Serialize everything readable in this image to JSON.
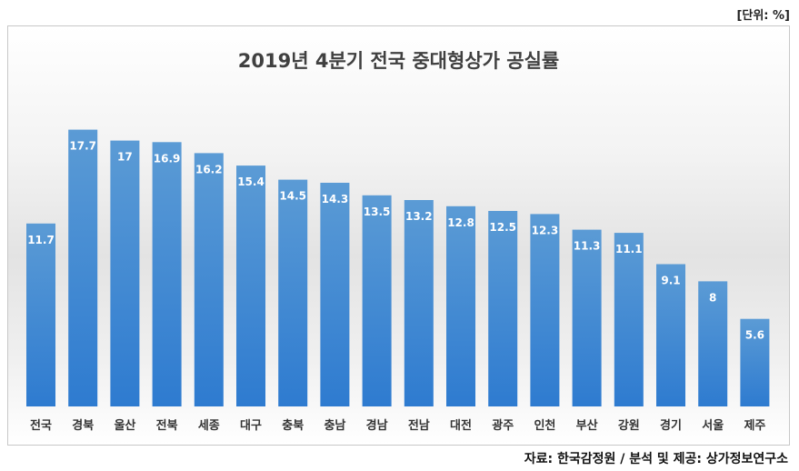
{
  "unit_label": "[단위: %]",
  "source": "자료: 한국감정원 / 분석 및 제공: 상가정보연구소",
  "colors": {
    "bar_top": "#5b9bd5",
    "bar_bottom": "#2e7bd0",
    "value_label": "#ffffff",
    "axis_label": "#333333"
  },
  "chart_data": {
    "type": "bar",
    "title": "2019년 4분기 전국 중대형상가 공실률",
    "xlabel": "",
    "ylabel": "",
    "ylim": [
      0,
      20
    ],
    "grid": false,
    "categories": [
      "전국",
      "경북",
      "울산",
      "전북",
      "세종",
      "대구",
      "충북",
      "충남",
      "경남",
      "전남",
      "대전",
      "광주",
      "인천",
      "부산",
      "강원",
      "경기",
      "서울",
      "제주"
    ],
    "values": [
      11.7,
      17.7,
      17,
      16.9,
      16.2,
      15.4,
      14.5,
      14.3,
      13.5,
      13.2,
      12.8,
      12.5,
      12.3,
      11.3,
      11.1,
      9.1,
      8,
      5.6
    ],
    "value_labels": [
      "11.7",
      "17.7",
      "17",
      "16.9",
      "16.2",
      "15.4",
      "14.5",
      "14.3",
      "13.5",
      "13.2",
      "12.8",
      "12.5",
      "12.3",
      "11.3",
      "11.1",
      "9.1",
      "8",
      "5.6"
    ]
  }
}
